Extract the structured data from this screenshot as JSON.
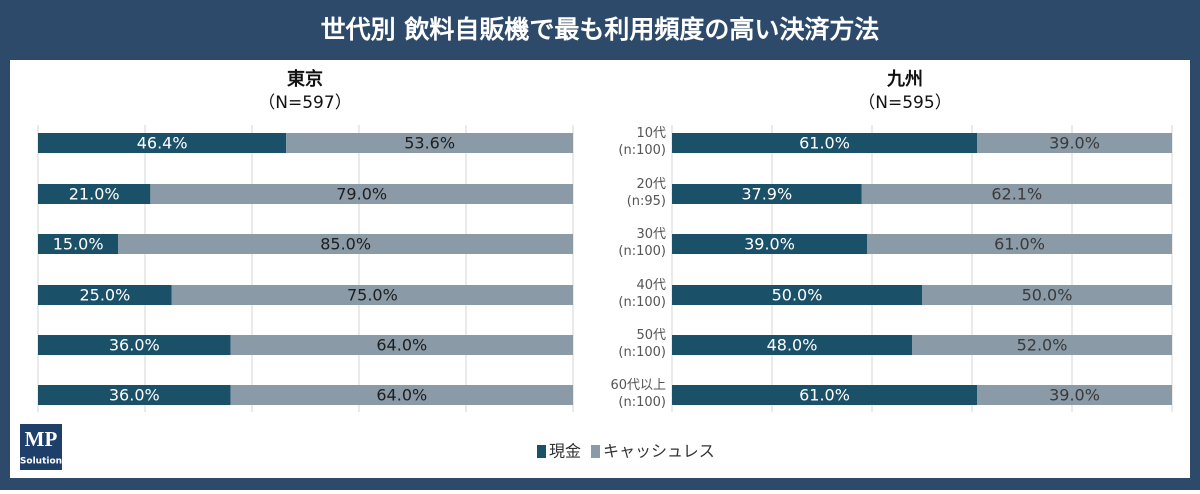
{
  "header": {
    "title": "世代別 飲料自販機で最も利用頻度の高い決済方法"
  },
  "logo": {
    "mark": "MP",
    "text": "Solution"
  },
  "legend": [
    {
      "name": "現金",
      "color": "#1a5068"
    },
    {
      "name": "キャッシュレス",
      "color": "#8a9aa6"
    }
  ],
  "chart_data": [
    {
      "type": "stacked_barh",
      "title": "東京",
      "subtitle": "（N=597）",
      "categories": [
        null,
        null,
        null,
        null,
        null,
        null
      ],
      "series": [
        {
          "color": "#1a5068",
          "values": [
            46.4,
            21.0,
            15.0,
            25.0,
            36.0,
            36.0
          ],
          "value_labels": [
            "46.4%",
            "21.0%",
            "15.0%",
            "25.0%",
            "36.0%",
            "36.0%"
          ],
          "label_color": "#ffffff"
        },
        {
          "color": "#8a9aa6",
          "values": [
            53.6,
            79.0,
            85.0,
            75.0,
            64.0,
            64.0
          ],
          "value_labels": [
            "53.6%",
            "79.0%",
            "85.0%",
            "75.0%",
            "64.0%",
            "64.0%"
          ],
          "label_color": "#1e1e1e"
        }
      ],
      "xlim": [
        0,
        100
      ],
      "xticks": [
        0,
        20,
        40,
        60,
        80,
        100
      ],
      "grid": true
    },
    {
      "type": "stacked_barh",
      "title": "九州",
      "subtitle": "（N=595）",
      "categories": [
        "10代\n(n:100)",
        "20代\n(n:95)",
        "30代\n(n:100)",
        "40代\n(n:100)",
        "50代\n(n:100)",
        "60代以上\n(n:100)"
      ],
      "series": [
        {
          "color": "#1a5068",
          "values": [
            61.0,
            37.9,
            39.0,
            50.0,
            48.0,
            61.0
          ],
          "value_labels": [
            "61.0%",
            "37.9%",
            "39.0%",
            "50.0%",
            "48.0%",
            "61.0%"
          ],
          "label_color": "#ffffff"
        },
        {
          "color": "#8a9aa6",
          "values": [
            39.0,
            62.1,
            61.0,
            50.0,
            52.0,
            39.0
          ],
          "value_labels": [
            "39.0%",
            "62.1%",
            "61.0%",
            "50.0%",
            "52.0%",
            "39.0%"
          ],
          "label_color": "#3a3a3a"
        }
      ],
      "xlim": [
        0,
        100
      ],
      "xticks": [
        0,
        20,
        40,
        60,
        80,
        100
      ],
      "grid": true
    }
  ]
}
